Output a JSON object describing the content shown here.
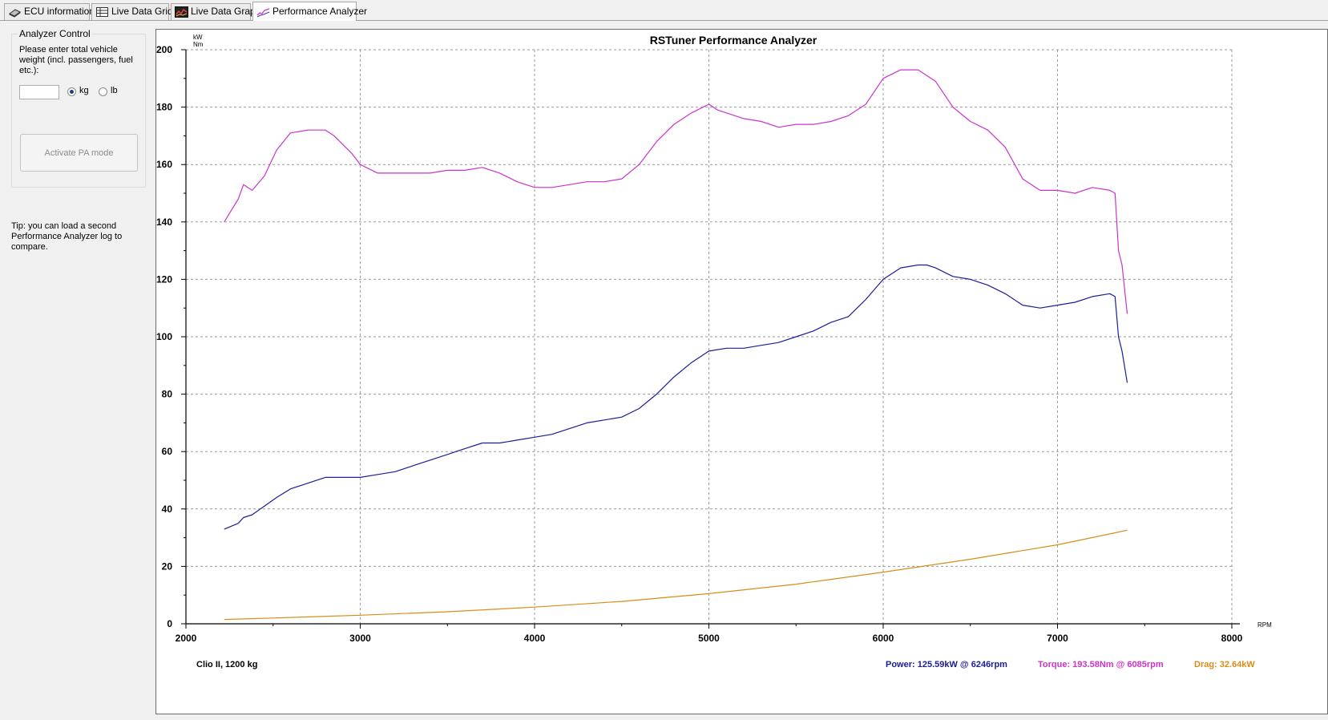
{
  "tabs": [
    {
      "label": "ECU information",
      "icon": "ecu-chip-icon",
      "active": false
    },
    {
      "label": "Live Data Grid",
      "icon": "grid-icon",
      "active": false
    },
    {
      "label": "Live Data Graph",
      "icon": "graph-icon",
      "active": false
    },
    {
      "label": "Performance Analyzer",
      "icon": "performance-curve-icon",
      "active": true
    }
  ],
  "analyzer_control": {
    "title": "Analyzer Control",
    "prompt": "Please enter total vehicle weight (incl. passengers, fuel etc.):",
    "weight_value": "",
    "unit_kg": "kg",
    "unit_lb": "lb",
    "selected_unit": "kg",
    "activate_button": "Activate PA mode"
  },
  "tip": "Tip: you can load a second Performance Analyzer log to compare.",
  "chart_data": {
    "type": "line",
    "title": "RSTuner Performance Analyzer",
    "ylabel_units": [
      "kW",
      "Nm"
    ],
    "xlabel": "RPM",
    "xlim": [
      2000,
      8000
    ],
    "ylim": [
      0,
      200
    ],
    "x_ticks": [
      2000,
      3000,
      4000,
      5000,
      6000,
      7000,
      8000
    ],
    "y_ticks": [
      0,
      20,
      40,
      60,
      80,
      100,
      120,
      140,
      160,
      180,
      200
    ],
    "grid": true,
    "series": [
      {
        "name": "Torque",
        "color": "#cc33cc",
        "x": [
          2220,
          2300,
          2330,
          2380,
          2450,
          2520,
          2600,
          2700,
          2800,
          2850,
          2950,
          3000,
          3100,
          3200,
          3300,
          3400,
          3500,
          3600,
          3700,
          3800,
          3900,
          4000,
          4100,
          4200,
          4300,
          4400,
          4500,
          4600,
          4700,
          4800,
          4900,
          5000,
          5050,
          5100,
          5200,
          5300,
          5400,
          5500,
          5600,
          5700,
          5800,
          5900,
          6000,
          6100,
          6200,
          6300,
          6400,
          6500,
          6600,
          6700,
          6800,
          6900,
          7000,
          7100,
          7200,
          7300,
          7330,
          7350,
          7370,
          7400
        ],
        "y": [
          140,
          148,
          153,
          151,
          156,
          165,
          171,
          172,
          172,
          170,
          164,
          160,
          157,
          157,
          157,
          157,
          158,
          158,
          159,
          157,
          154,
          152,
          152,
          153,
          154,
          154,
          155,
          160,
          168,
          174,
          178,
          181,
          179,
          178,
          176,
          175,
          173,
          174,
          174,
          175,
          177,
          181,
          190,
          193,
          193,
          189,
          180,
          175,
          172,
          166,
          155,
          151,
          151,
          150,
          152,
          151,
          150,
          130,
          125,
          108
        ]
      },
      {
        "name": "Power",
        "color": "#1c1c99",
        "x": [
          2220,
          2300,
          2330,
          2380,
          2450,
          2520,
          2600,
          2700,
          2800,
          2900,
          3000,
          3100,
          3200,
          3300,
          3400,
          3500,
          3600,
          3700,
          3800,
          3900,
          4000,
          4100,
          4200,
          4300,
          4400,
          4500,
          4600,
          4700,
          4800,
          4900,
          5000,
          5100,
          5200,
          5300,
          5400,
          5500,
          5600,
          5700,
          5800,
          5900,
          6000,
          6100,
          6200,
          6250,
          6300,
          6400,
          6500,
          6600,
          6700,
          6800,
          6900,
          7000,
          7100,
          7200,
          7300,
          7330,
          7350,
          7370,
          7400
        ],
        "y": [
          33,
          35,
          37,
          38,
          41,
          44,
          47,
          49,
          51,
          51,
          51,
          52,
          53,
          55,
          57,
          59,
          61,
          63,
          63,
          64,
          65,
          66,
          68,
          70,
          71,
          72,
          75,
          80,
          86,
          91,
          95,
          96,
          96,
          97,
          98,
          100,
          102,
          105,
          107,
          113,
          120,
          124,
          125,
          125,
          124,
          121,
          120,
          118,
          115,
          111,
          110,
          111,
          112,
          114,
          115,
          114,
          100,
          95,
          84
        ]
      },
      {
        "name": "Drag",
        "color": "#d98c1a",
        "x": [
          2220,
          2500,
          3000,
          3500,
          4000,
          4500,
          5000,
          5500,
          6000,
          6500,
          7000,
          7400
        ],
        "y": [
          1.5,
          2.0,
          3.0,
          4.2,
          5.8,
          7.8,
          10.5,
          13.8,
          18.0,
          22.5,
          27.5,
          32.6
        ]
      }
    ]
  },
  "footer": {
    "vehicle": "Clio II, 1200 kg",
    "power": "Power: 125.59kW @ 6246rpm",
    "torque": "Torque: 193.58Nm @ 6085rpm",
    "drag": "Drag: 32.64kW",
    "power_color": "#1c1c99",
    "torque_color": "#cc33cc",
    "drag_color": "#d98c1a"
  }
}
